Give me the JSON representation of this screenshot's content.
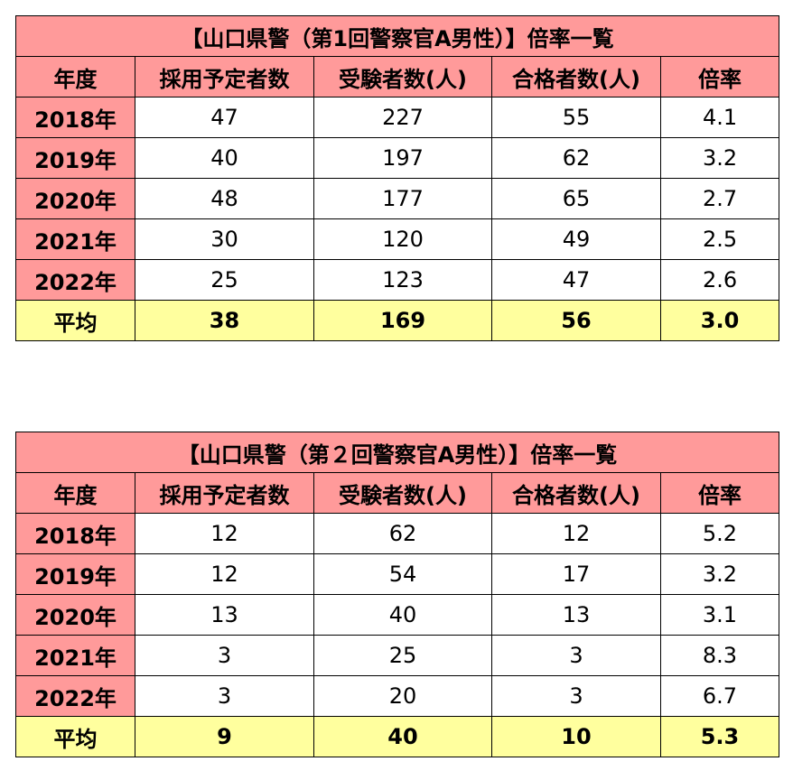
{
  "tables": [
    {
      "title": "【山口県警（第1回警察官A男性）】倍率一覧",
      "headers": [
        "年度",
        "採用予定者数",
        "受験者数(人)",
        "合格者数(人)",
        "倍率"
      ],
      "rows": [
        {
          "year": "2018年",
          "planned": "47",
          "applicants": "227",
          "passed": "55",
          "ratio": "4.1"
        },
        {
          "year": "2019年",
          "planned": "40",
          "applicants": "197",
          "passed": "62",
          "ratio": "3.2"
        },
        {
          "year": "2020年",
          "planned": "48",
          "applicants": "177",
          "passed": "65",
          "ratio": "2.7"
        },
        {
          "year": "2021年",
          "planned": "30",
          "applicants": "120",
          "passed": "49",
          "ratio": "2.5"
        },
        {
          "year": "2022年",
          "planned": "25",
          "applicants": "123",
          "passed": "47",
          "ratio": "2.6"
        }
      ],
      "average": {
        "label": "平均",
        "planned": "38",
        "applicants": "169",
        "passed": "56",
        "ratio": "3.0"
      }
    },
    {
      "title": "【山口県警（第２回警察官A男性）】倍率一覧",
      "headers": [
        "年度",
        "採用予定者数",
        "受験者数(人)",
        "合格者数(人)",
        "倍率"
      ],
      "rows": [
        {
          "year": "2018年",
          "planned": "12",
          "applicants": "62",
          "passed": "12",
          "ratio": "5.2"
        },
        {
          "year": "2019年",
          "planned": "12",
          "applicants": "54",
          "passed": "17",
          "ratio": "3.2"
        },
        {
          "year": "2020年",
          "planned": "13",
          "applicants": "40",
          "passed": "13",
          "ratio": "3.1"
        },
        {
          "year": "2021年",
          "planned": "3",
          "applicants": "25",
          "passed": "3",
          "ratio": "8.3"
        },
        {
          "year": "2022年",
          "planned": "3",
          "applicants": "20",
          "passed": "3",
          "ratio": "6.7"
        }
      ],
      "average": {
        "label": "平均",
        "planned": "9",
        "applicants": "40",
        "passed": "10",
        "ratio": "5.3"
      }
    }
  ],
  "colors": {
    "header_bg": "#ff9a9a",
    "average_bg": "#ffff9e",
    "cell_bg": "#ffffff",
    "border": "#000000"
  }
}
